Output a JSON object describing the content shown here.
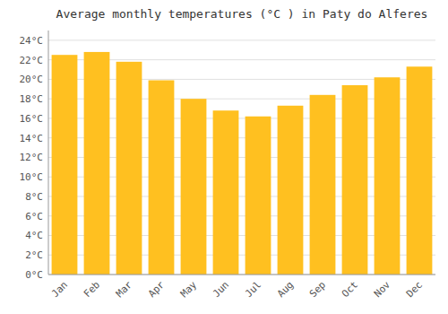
{
  "chart_data": {
    "type": "bar",
    "title": "Average monthly temperatures (°C ) in Paty do Alferes",
    "categories": [
      "Jan",
      "Feb",
      "Mar",
      "Apr",
      "May",
      "Jun",
      "Jul",
      "Aug",
      "Sep",
      "Oct",
      "Nov",
      "Dec"
    ],
    "values": [
      22.5,
      22.8,
      21.8,
      19.9,
      18.0,
      16.8,
      16.2,
      17.3,
      18.4,
      19.4,
      20.2,
      21.3
    ],
    "color": "#FFC020",
    "ylim": [
      0,
      25
    ],
    "yticks": [
      {
        "value": 0,
        "label": "0°C"
      },
      {
        "value": 2,
        "label": "2°C"
      },
      {
        "value": 4,
        "label": "4°C"
      },
      {
        "value": 6,
        "label": "6°C"
      },
      {
        "value": 8,
        "label": "8°C"
      },
      {
        "value": 10,
        "label": "10°C"
      },
      {
        "value": 12,
        "label": "12°C"
      },
      {
        "value": 14,
        "label": "14°C"
      },
      {
        "value": 16,
        "label": "16°C"
      },
      {
        "value": 18,
        "label": "18°C"
      },
      {
        "value": 20,
        "label": "20°C"
      },
      {
        "value": 22,
        "label": "22°C"
      },
      {
        "value": 24,
        "label": "24°C"
      }
    ],
    "grid": true
  }
}
